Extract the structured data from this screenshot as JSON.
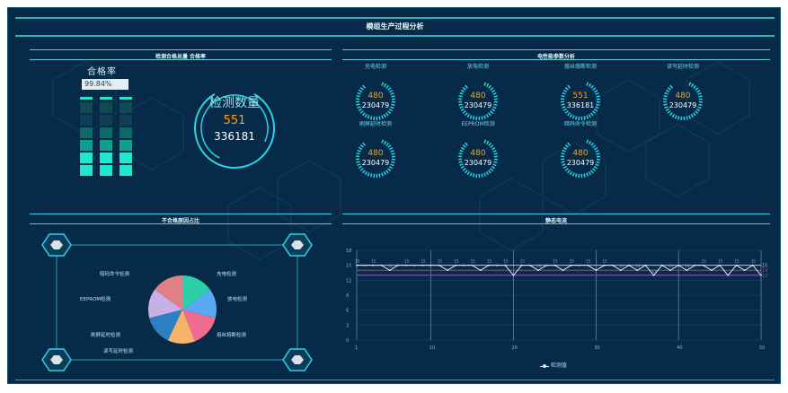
{
  "header": {
    "title": "模组生产过程分析"
  },
  "sections": {
    "pass_rate": {
      "title": "检测合格总量 合格率"
    },
    "electrical": {
      "title": "电性能参数分析"
    },
    "defect": {
      "title": "不合格原因占比"
    },
    "static": {
      "title": "静态电流"
    }
  },
  "pass_panel": {
    "title": "合格率",
    "rate_text": "99.84%",
    "rate_fraction": 0.9984,
    "bars": [
      {
        "name": "bar-1",
        "colors": [
          "#1de9d0",
          "#1de9d0",
          "#0ea08f",
          "#0b6b68",
          "#103f55",
          "#104a52"
        ]
      },
      {
        "name": "bar-2",
        "colors": [
          "#1de9d0",
          "#1de9d0",
          "#0ea08f",
          "#0b6b68",
          "#103f55",
          "#104a52"
        ]
      },
      {
        "name": "bar-3",
        "colors": [
          "#1de9d0",
          "#1de9d0",
          "#0ea08f",
          "#0b6b68",
          "#103f55",
          "#104a52"
        ]
      }
    ]
  },
  "total_gauge": {
    "label": "检测数量",
    "value": "551",
    "total": "336181"
  },
  "gauges": [
    {
      "label": "充电检测",
      "value": "480",
      "total": "230479"
    },
    {
      "label": "放电检测",
      "value": "480",
      "total": "230479"
    },
    {
      "label": "熔丝熔断检测",
      "value": "551",
      "total": "336181"
    },
    {
      "label": "读写延时检测",
      "value": "480",
      "total": "230479"
    },
    {
      "label": "刷屏延时检测",
      "value": "480",
      "total": "230479"
    },
    {
      "label": "EEPROM检测",
      "value": "480",
      "total": "230479"
    },
    {
      "label": "暗码命令检测",
      "value": "480",
      "total": "230479"
    }
  ],
  "pie": {
    "labels": [
      {
        "text": "暗码命令检测",
        "side": "left"
      },
      {
        "text": "EEPROM检测",
        "side": "left"
      },
      {
        "text": "刷屏延时检测",
        "side": "left"
      },
      {
        "text": "读写延时检测",
        "side": "left"
      },
      {
        "text": "充电检测",
        "side": "right"
      },
      {
        "text": "放电检测",
        "side": "right"
      },
      {
        "text": "熔丝熔断检测",
        "side": "right"
      }
    ],
    "slices": [
      {
        "name": "充电检测",
        "value": 15,
        "color": "#2ad1a8"
      },
      {
        "name": "放电检测",
        "value": 14,
        "color": "#5aa9f0"
      },
      {
        "name": "熔丝熔断检测",
        "value": 15,
        "color": "#f06b8e"
      },
      {
        "name": "读写延时检测",
        "value": 13,
        "color": "#f7b36b"
      },
      {
        "name": "刷屏延时检测",
        "value": 14,
        "color": "#2c7fc2"
      },
      {
        "name": "EEPROM检测",
        "value": 14,
        "color": "#c7b0e6"
      },
      {
        "name": "暗码命令检测",
        "value": 15,
        "color": "#e08084"
      }
    ]
  },
  "chart_data": {
    "type": "line",
    "title": "",
    "xlabel": "",
    "ylabel": "",
    "ylim": [
      0,
      18
    ],
    "yticks": [
      0,
      3,
      6,
      9,
      12,
      15,
      18
    ],
    "xticks": [
      1,
      10,
      20,
      30,
      40,
      50
    ],
    "reference_lines": [
      {
        "value": 15,
        "label": "15",
        "color": "#c8d44a"
      },
      {
        "value": 14,
        "label": "14",
        "color": "#d63a3a"
      },
      {
        "value": 13,
        "label": "13",
        "color": "#9a57c8"
      }
    ],
    "series": [
      {
        "name": "检测值",
        "color": "#d6ecf7",
        "x": [
          1,
          2,
          3,
          4,
          5,
          6,
          7,
          8,
          9,
          10,
          11,
          12,
          13,
          14,
          15,
          16,
          17,
          18,
          19,
          20,
          21,
          22,
          23,
          24,
          25,
          26,
          27,
          28,
          29,
          30,
          31,
          32,
          33,
          34,
          35,
          36,
          37,
          38,
          39,
          40,
          41,
          42,
          43,
          44,
          45,
          46,
          47,
          48,
          49,
          50
        ],
        "values": [
          15,
          15,
          15,
          15,
          14,
          15,
          15,
          15,
          15,
          15,
          15,
          14,
          15,
          15,
          15,
          14,
          15,
          15,
          15,
          13,
          15,
          15,
          14,
          15,
          15,
          14,
          15,
          15,
          15,
          14,
          15,
          15,
          14,
          15,
          14,
          15,
          13,
          15,
          14,
          15,
          14,
          15,
          15,
          14,
          15,
          13,
          15,
          14,
          15,
          13
        ]
      }
    ],
    "legend": [
      "检测值"
    ],
    "legend_position": "bottom"
  }
}
